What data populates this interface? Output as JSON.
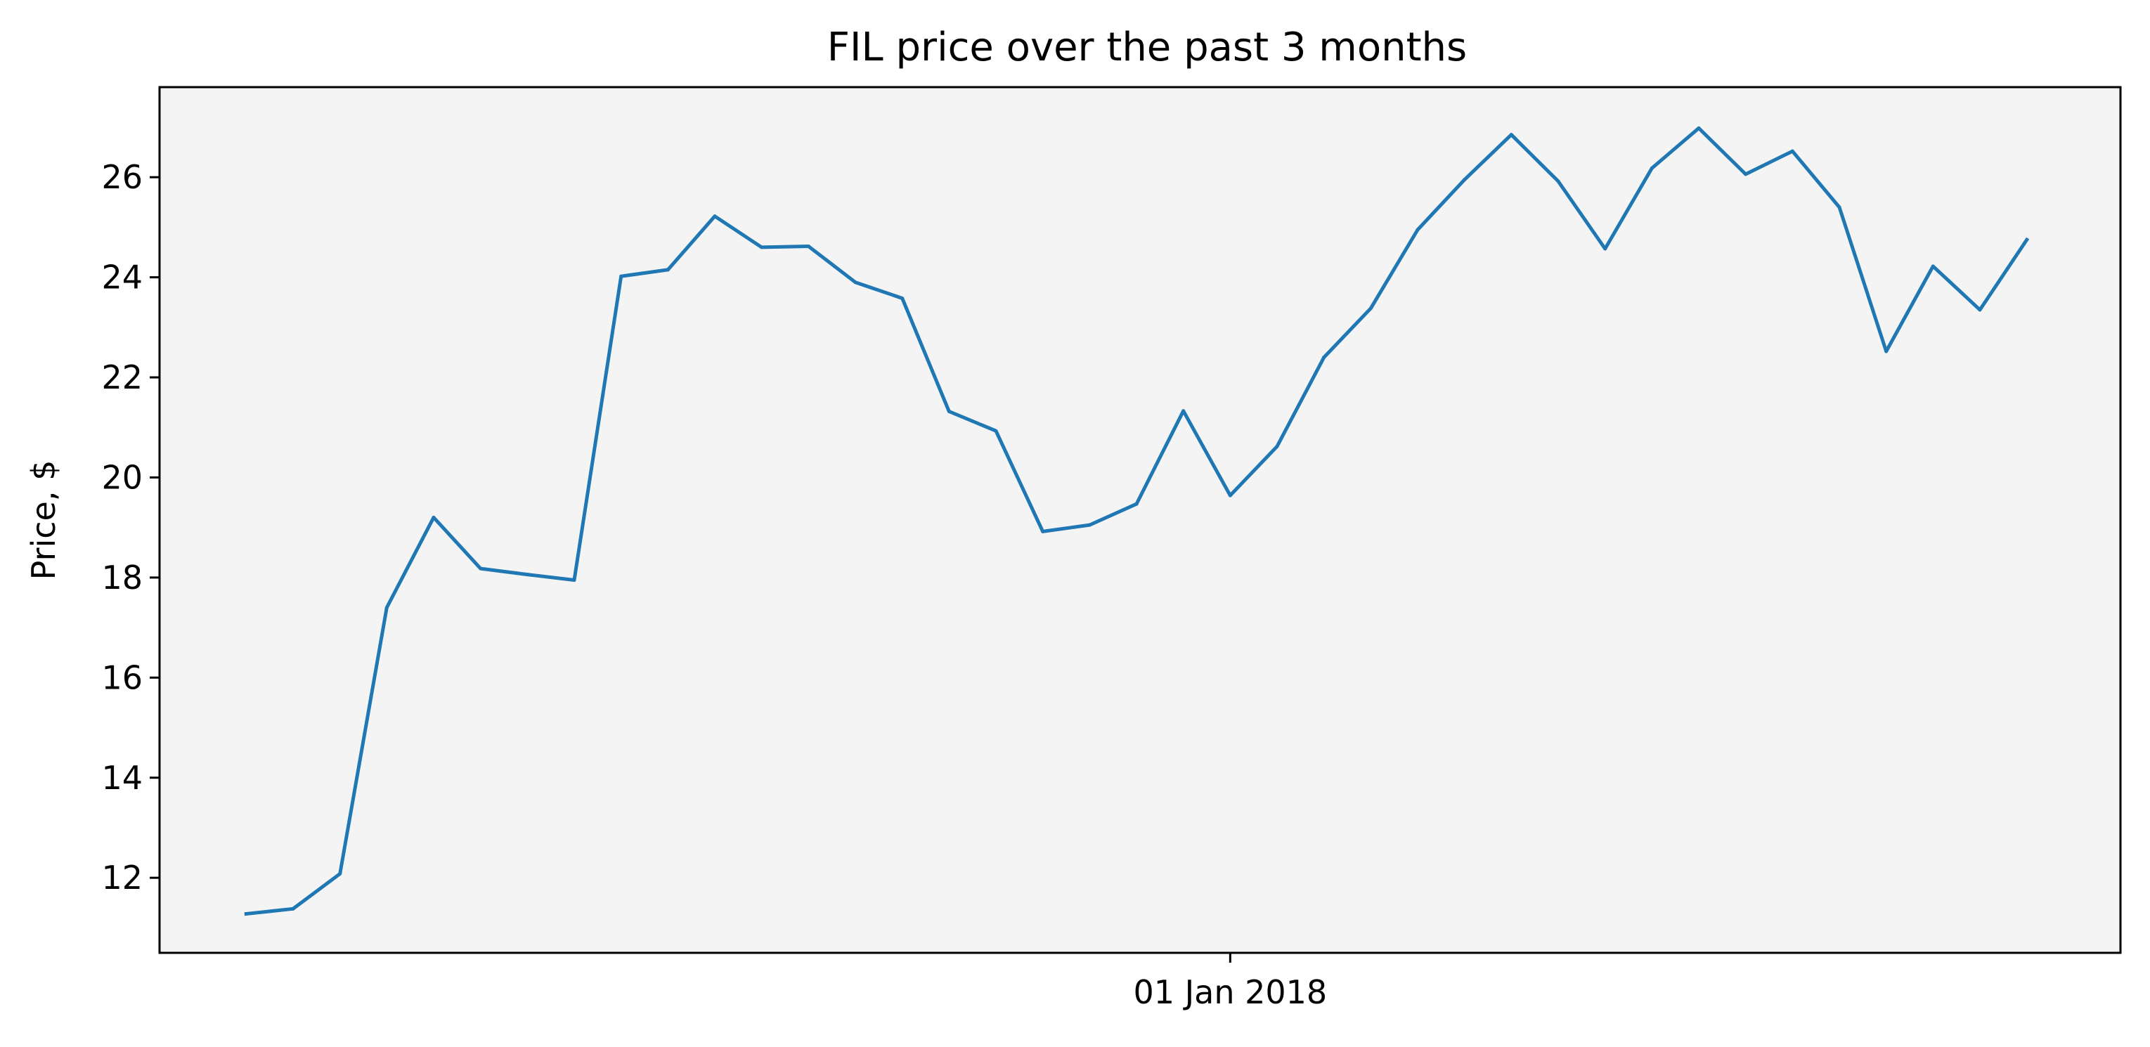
{
  "chart_data": {
    "type": "line",
    "title": "FIL price over the past 3 months",
    "xlabel": "",
    "ylabel": "Price, $",
    "x_tick_labels": [
      "01 Jan 2018"
    ],
    "x_tick_values": [
      21
    ],
    "y_ticks": [
      12,
      14,
      16,
      18,
      20,
      22,
      24,
      26
    ],
    "ylim": [
      10.5,
      27.8
    ],
    "xlim": [
      -1.85,
      40
    ],
    "grid": false,
    "legend": "none",
    "background_color": "#f4f4f4",
    "line_color": "#1f77b4",
    "series": [
      {
        "values": [
          11.28,
          11.38,
          12.08,
          17.4,
          19.2,
          18.18,
          18.06,
          17.95,
          24.02,
          24.15,
          25.22,
          24.6,
          24.62,
          23.9,
          23.58,
          21.32,
          20.93,
          18.92,
          19.05,
          19.47,
          21.33,
          19.64,
          20.62,
          22.4,
          23.38,
          24.95,
          25.95,
          26.85,
          25.92,
          24.57,
          26.18,
          26.98,
          26.06,
          26.52,
          25.4,
          22.52,
          24.22,
          23.35,
          24.75
        ]
      }
    ]
  }
}
